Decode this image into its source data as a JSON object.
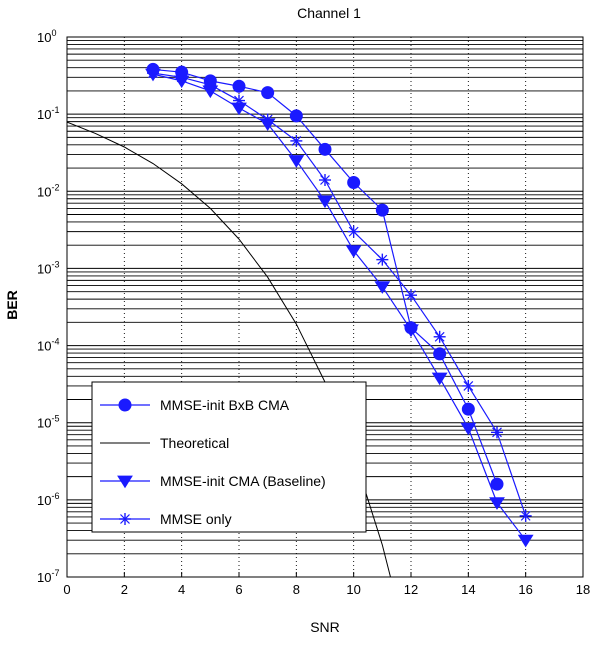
{
  "chart_data": {
    "type": "line",
    "title": "Channel 1",
    "xlabel": "SNR",
    "ylabel": "BER",
    "xlim": [
      0,
      18
    ],
    "ylim": [
      1e-07,
      1
    ],
    "yscale": "log",
    "grid": true,
    "x_ticks": [
      "0",
      "2",
      "4",
      "6",
      "8",
      "10",
      "12",
      "14",
      "16",
      "18"
    ],
    "y_ticks": [
      {
        "base": "10",
        "exp": "0"
      },
      {
        "base": "10",
        "exp": "-1"
      },
      {
        "base": "10",
        "exp": "-2"
      },
      {
        "base": "10",
        "exp": "-3"
      },
      {
        "base": "10",
        "exp": "-4"
      },
      {
        "base": "10",
        "exp": "-5"
      },
      {
        "base": "10",
        "exp": "-6"
      },
      {
        "base": "10",
        "exp": "-7"
      }
    ],
    "legend_position": "bottom-left",
    "series": [
      {
        "name": "MMSE-init BxB CMA",
        "marker": "circle",
        "color": "#1a1aff",
        "x": [
          3,
          4,
          5,
          6,
          7,
          8,
          9,
          10,
          11,
          12,
          13,
          14,
          15
        ],
        "y": [
          0.38,
          0.35,
          0.27,
          0.23,
          0.19,
          0.095,
          0.035,
          0.013,
          0.0057,
          0.00017,
          7.8e-05,
          1.5e-05,
          1.6e-06
        ]
      },
      {
        "name": "Theoretical",
        "marker": "none",
        "color": "#000000",
        "x": [
          0,
          1,
          2,
          3,
          4,
          5,
          6,
          7,
          8,
          9,
          10,
          11,
          12
        ],
        "y": [
          0.079,
          0.056,
          0.0375,
          0.0229,
          0.0125,
          0.006,
          0.0024,
          0.00077,
          0.00019,
          3.36e-05,
          3.9e-06,
          2.6e-07,
          9e-09
        ]
      },
      {
        "name": "MMSE-init CMA (Baseline)",
        "marker": "triangle-down",
        "color": "#1a1aff",
        "x": [
          3,
          4,
          5,
          6,
          7,
          8,
          9,
          10,
          11,
          12,
          13,
          14,
          15,
          16
        ],
        "y": [
          0.33,
          0.27,
          0.2,
          0.12,
          0.075,
          0.025,
          0.0075,
          0.0017,
          0.00058,
          0.00016,
          3.8e-05,
          8.5e-06,
          9.2e-07,
          3e-07
        ]
      },
      {
        "name": "MMSE only",
        "marker": "star",
        "color": "#1a1aff",
        "x": [
          3,
          4,
          5,
          6,
          7,
          8,
          9,
          10,
          11,
          12,
          13,
          14,
          15,
          16
        ],
        "y": [
          0.34,
          0.3,
          0.24,
          0.15,
          0.085,
          0.045,
          0.014,
          0.003,
          0.0013,
          0.00045,
          0.00013,
          3e-05,
          7.5e-06,
          6.2e-07
        ]
      }
    ]
  }
}
